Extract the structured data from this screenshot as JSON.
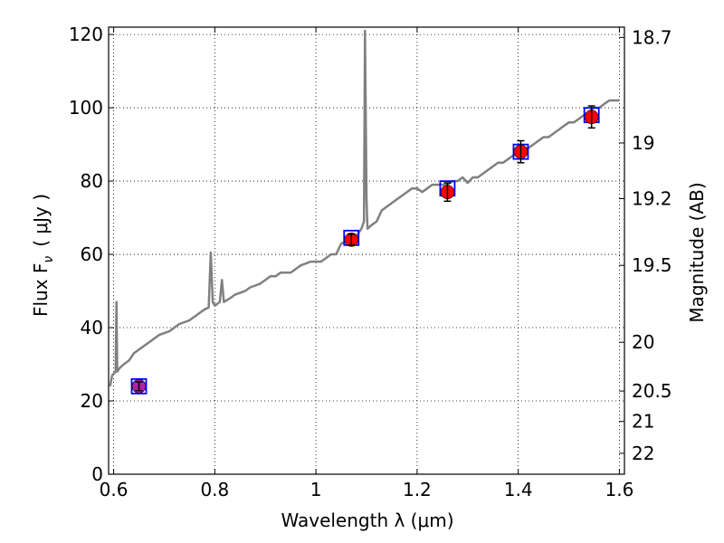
{
  "chart_data": {
    "type": "line",
    "xlabel": "Wavelength  λ (μm)",
    "ylabel": "Flux  F",
    "ylabel_sub": "ν",
    "ylabel_unit": "( μJy )",
    "y2label": "Magnitude (AB)",
    "xlim": [
      0.59,
      1.61
    ],
    "ylim": [
      0,
      122
    ],
    "grid": true,
    "x_ticks": [
      {
        "value": 0.6,
        "label": "0.6"
      },
      {
        "value": 0.8,
        "label": "0.8"
      },
      {
        "value": 1.0,
        "label": "1"
      },
      {
        "value": 1.2,
        "label": "1.2"
      },
      {
        "value": 1.4,
        "label": "1.4"
      },
      {
        "value": 1.6,
        "label": "1.6"
      }
    ],
    "y_ticks": [
      {
        "value": 0,
        "label": "0"
      },
      {
        "value": 20,
        "label": "20"
      },
      {
        "value": 40,
        "label": "40"
      },
      {
        "value": 60,
        "label": "60"
      },
      {
        "value": 80,
        "label": "80"
      },
      {
        "value": 100,
        "label": "100"
      },
      {
        "value": 120,
        "label": "120"
      }
    ],
    "y2_ticks": [
      {
        "label": "18.7",
        "flux": 119.2
      },
      {
        "label": "19",
        "flux": 90.4
      },
      {
        "label": "19.2",
        "flux": 75.2
      },
      {
        "label": "19.5",
        "flux": 57.0
      },
      {
        "label": "20",
        "flux": 36.0
      },
      {
        "label": "20.5",
        "flux": 22.7
      },
      {
        "label": "21",
        "flux": 14.4
      },
      {
        "label": "22",
        "flux": 5.7
      }
    ],
    "series": [
      {
        "kind": "spectrum",
        "color": "#808080",
        "points": [
          [
            0.593,
            24
          ],
          [
            0.597,
            27
          ],
          [
            0.601,
            27.5
          ],
          [
            0.604,
            28
          ],
          [
            0.6055,
            47
          ],
          [
            0.607,
            28
          ],
          [
            0.612,
            29
          ],
          [
            0.62,
            30
          ],
          [
            0.63,
            31
          ],
          [
            0.64,
            33
          ],
          [
            0.65,
            34
          ],
          [
            0.66,
            35
          ],
          [
            0.67,
            36
          ],
          [
            0.68,
            37
          ],
          [
            0.69,
            38
          ],
          [
            0.7,
            38.5
          ],
          [
            0.71,
            39
          ],
          [
            0.72,
            40
          ],
          [
            0.73,
            41
          ],
          [
            0.74,
            41.5
          ],
          [
            0.75,
            42
          ],
          [
            0.76,
            43
          ],
          [
            0.77,
            44
          ],
          [
            0.78,
            45
          ],
          [
            0.788,
            45.5
          ],
          [
            0.792,
            60.5
          ],
          [
            0.796,
            47
          ],
          [
            0.8,
            46
          ],
          [
            0.81,
            47
          ],
          [
            0.814,
            53
          ],
          [
            0.818,
            47
          ],
          [
            0.83,
            48
          ],
          [
            0.84,
            49
          ],
          [
            0.85,
            49.5
          ],
          [
            0.86,
            50
          ],
          [
            0.87,
            51
          ],
          [
            0.88,
            51.5
          ],
          [
            0.89,
            52
          ],
          [
            0.9,
            53
          ],
          [
            0.91,
            54
          ],
          [
            0.92,
            54
          ],
          [
            0.93,
            55
          ],
          [
            0.94,
            55
          ],
          [
            0.95,
            55
          ],
          [
            0.96,
            56
          ],
          [
            0.97,
            57
          ],
          [
            0.98,
            57.5
          ],
          [
            0.99,
            58
          ],
          [
            1.0,
            58
          ],
          [
            1.01,
            58
          ],
          [
            1.02,
            59
          ],
          [
            1.03,
            60
          ],
          [
            1.04,
            60
          ],
          [
            1.05,
            63
          ],
          [
            1.06,
            63.5
          ],
          [
            1.07,
            64
          ],
          [
            1.08,
            65
          ],
          [
            1.09,
            67
          ],
          [
            1.095,
            69
          ],
          [
            1.097,
            121
          ],
          [
            1.1,
            75
          ],
          [
            1.102,
            67
          ],
          [
            1.11,
            68
          ],
          [
            1.12,
            69
          ],
          [
            1.13,
            72
          ],
          [
            1.14,
            73
          ],
          [
            1.15,
            74
          ],
          [
            1.16,
            75
          ],
          [
            1.17,
            76
          ],
          [
            1.18,
            77
          ],
          [
            1.19,
            78
          ],
          [
            1.2,
            78
          ],
          [
            1.21,
            77
          ],
          [
            1.22,
            78
          ],
          [
            1.23,
            79
          ],
          [
            1.24,
            79
          ],
          [
            1.25,
            79
          ],
          [
            1.26,
            79
          ],
          [
            1.27,
            80
          ],
          [
            1.28,
            80
          ],
          [
            1.29,
            81
          ],
          [
            1.3,
            79.5
          ],
          [
            1.31,
            81
          ],
          [
            1.32,
            81
          ],
          [
            1.33,
            82
          ],
          [
            1.34,
            83
          ],
          [
            1.35,
            84
          ],
          [
            1.36,
            85
          ],
          [
            1.37,
            85
          ],
          [
            1.38,
            86
          ],
          [
            1.39,
            87
          ],
          [
            1.4,
            88
          ],
          [
            1.41,
            89
          ],
          [
            1.42,
            89
          ],
          [
            1.43,
            90
          ],
          [
            1.44,
            91
          ],
          [
            1.45,
            92
          ],
          [
            1.46,
            92
          ],
          [
            1.47,
            93
          ],
          [
            1.48,
            94
          ],
          [
            1.49,
            95
          ],
          [
            1.5,
            96
          ],
          [
            1.51,
            96
          ],
          [
            1.52,
            97
          ],
          [
            1.53,
            98
          ],
          [
            1.54,
            99
          ],
          [
            1.55,
            100
          ],
          [
            1.56,
            100
          ],
          [
            1.57,
            101
          ],
          [
            1.58,
            102
          ],
          [
            1.59,
            102
          ],
          [
            1.6,
            102
          ]
        ]
      },
      {
        "kind": "model_squares",
        "color": "#0000ff",
        "points": [
          [
            0.65,
            24
          ],
          [
            1.07,
            64.5
          ],
          [
            1.26,
            78
          ],
          [
            1.405,
            88
          ],
          [
            1.545,
            98
          ]
        ]
      },
      {
        "kind": "observed_points",
        "color": "#ff0000",
        "points": [
          {
            "x": 1.07,
            "y": 64,
            "err": 1.5
          },
          {
            "x": 1.26,
            "y": 77,
            "err": 2.5
          },
          {
            "x": 1.405,
            "y": 88,
            "err": 3
          },
          {
            "x": 1.545,
            "y": 97.5,
            "err": 3
          },
          {
            "x": 0.65,
            "y": 24,
            "err": 1.2,
            "color": "#aa22aa"
          }
        ]
      }
    ]
  }
}
